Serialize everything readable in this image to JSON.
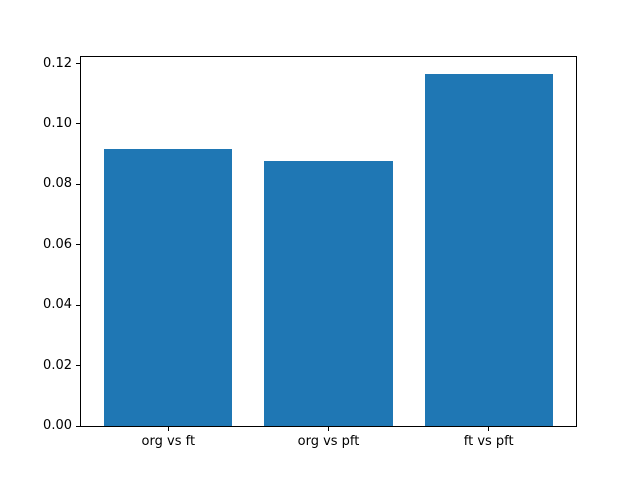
{
  "chart_data": {
    "type": "bar",
    "title": "",
    "xlabel": "",
    "ylabel": "",
    "categories": [
      "org vs ft",
      "org vs pft",
      "ft vs pft"
    ],
    "values": [
      0.092,
      0.088,
      0.117
    ],
    "ylim": [
      0,
      0.1225
    ],
    "yticks": [
      0.0,
      0.02,
      0.04,
      0.06,
      0.08,
      0.1,
      0.12
    ],
    "ytick_labels": [
      "0.00",
      "0.02",
      "0.04",
      "0.06",
      "0.08",
      "0.10",
      "0.12"
    ],
    "bar_color": "#1f77b4",
    "bar_width_fraction": 0.8,
    "grid": false,
    "legend_position": "none",
    "background_color": "#ffffff",
    "spine_color": "#000000"
  }
}
